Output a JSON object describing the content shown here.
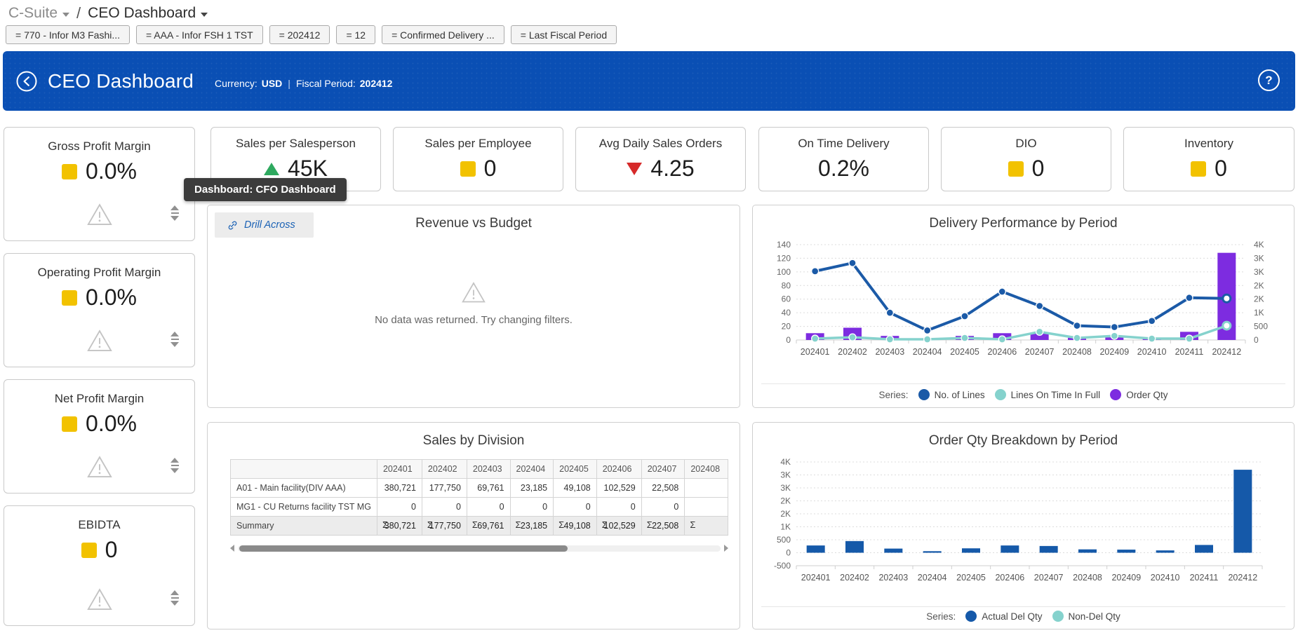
{
  "breadcrumb": {
    "section": "C-Suite",
    "divider": "/",
    "page": "CEO Dashboard"
  },
  "filters": [
    {
      "label": "= 770 - Infor M3 Fashi..."
    },
    {
      "label": "= AAA - Infor FSH 1 TST"
    },
    {
      "label": "= 202412"
    },
    {
      "label": "= 12"
    },
    {
      "label": "= Confirmed Delivery ..."
    },
    {
      "label": "= Last Fiscal Period"
    }
  ],
  "banner": {
    "title": "CEO Dashboard",
    "currency_label": "Currency:",
    "currency": "USD",
    "separator": "|",
    "fiscal_label": "Fiscal Period:",
    "fiscal": "202412",
    "help_glyph": "?"
  },
  "tooltip": {
    "text": "Dashboard: CFO Dashboard"
  },
  "left_kpis": [
    {
      "title": "Gross Profit Margin",
      "value": "0.0%",
      "indicator": "yellow-square"
    },
    {
      "title": "Operating Profit Margin",
      "value": "0.0%",
      "indicator": "yellow-square"
    },
    {
      "title": "Net Profit Margin",
      "value": "0.0%",
      "indicator": "yellow-square"
    },
    {
      "title": "EBIDTA",
      "value": "0",
      "indicator": "yellow-square"
    }
  ],
  "top_kpis": [
    {
      "title": "Sales per Salesperson",
      "value": "45K",
      "indicator": "green-up"
    },
    {
      "title": "Sales per Employee",
      "value": "0",
      "indicator": "yellow-square"
    },
    {
      "title": "Avg Daily Sales Orders",
      "value": "4.25",
      "indicator": "red-down"
    },
    {
      "title": "On Time Delivery",
      "value": "0.2%",
      "indicator": "none"
    },
    {
      "title": "DIO",
      "value": "0",
      "indicator": "yellow-square"
    },
    {
      "title": "Inventory",
      "value": "0",
      "indicator": "yellow-square"
    }
  ],
  "revenue_panel": {
    "title": "Revenue vs Budget",
    "drill_across": "Drill Across",
    "no_data_message": "No data was returned. Try changing filters."
  },
  "colors": {
    "banner_blue": "#0a4fb4",
    "kpi_yellow": "#f2c200",
    "kpi_green": "#2ea95f",
    "kpi_red": "#d62a2a",
    "series_blue": "#1b5aa7",
    "series_teal": "#85d2cd",
    "series_purple": "#7d2ce0"
  },
  "chart_data": [
    {
      "type": "combo",
      "title": "Delivery Performance by Period",
      "legend_label": "Series:",
      "categories": [
        "202401",
        "202402",
        "202403",
        "202404",
        "202405",
        "202406",
        "202407",
        "202408",
        "202409",
        "202410",
        "202411",
        "202412"
      ],
      "series": [
        {
          "name": "No. of Lines",
          "type": "line",
          "axis": "left",
          "color": "#1b5aa7",
          "values": [
            101,
            113,
            40,
            14,
            35,
            71,
            50,
            21,
            19,
            28,
            62,
            61
          ]
        },
        {
          "name": "Lines On Time In Full",
          "type": "line",
          "axis": "left",
          "color": "#85d2cd",
          "values": [
            2,
            4,
            1,
            1,
            3,
            1,
            12,
            3,
            6,
            2,
            2,
            21
          ]
        },
        {
          "name": "Order Qty",
          "type": "bar",
          "axis": "right",
          "color": "#7d2ce0",
          "values": [
            250,
            450,
            150,
            50,
            150,
            250,
            250,
            80,
            100,
            60,
            300,
            3200
          ]
        }
      ],
      "left_axis": {
        "min": 0,
        "max": 140,
        "ticks": [
          "0",
          "20",
          "40",
          "60",
          "80",
          "100",
          "120",
          "140"
        ]
      },
      "right_axis": {
        "min": 0,
        "max": 3500,
        "ticks": [
          "0",
          "500",
          "1K",
          "2K",
          "2K",
          "3K",
          "3K",
          "4K"
        ]
      },
      "grid": true,
      "legend_position": "bottom"
    },
    {
      "type": "table",
      "title": "Sales by Division",
      "columns": [
        "",
        "202401",
        "202402",
        "202403",
        "202404",
        "202405",
        "202406",
        "202407",
        "202408"
      ],
      "rows": [
        {
          "label": "A01 - Main facility(DIV AAA)",
          "values": [
            "380,721",
            "177,750",
            "69,761",
            "23,185",
            "49,108",
            "102,529",
            "22,508",
            ""
          ]
        },
        {
          "label": "MG1 - CU Returns facility TST MG",
          "values": [
            "0",
            "0",
            "0",
            "0",
            "0",
            "0",
            "0",
            ""
          ]
        }
      ],
      "summary": {
        "label": "Summary",
        "sigma": "Σ",
        "values": [
          "380,721",
          "177,750",
          "69,761",
          "23,185",
          "49,108",
          "102,529",
          "22,508",
          ""
        ]
      }
    },
    {
      "type": "bar",
      "title": "Order Qty Breakdown by Period",
      "legend_label": "Series:",
      "categories": [
        "202401",
        "202402",
        "202403",
        "202404",
        "202405",
        "202406",
        "202407",
        "202408",
        "202409",
        "202410",
        "202411",
        "202412"
      ],
      "series": [
        {
          "name": "Actual Del Qty",
          "type": "bar",
          "axis": "left",
          "color": "#1559a9",
          "values": [
            280,
            450,
            160,
            60,
            170,
            280,
            260,
            130,
            120,
            90,
            300,
            3200
          ]
        },
        {
          "name": "Non-Del Qty",
          "type": "bar",
          "axis": "left",
          "color": "#85d2cd",
          "values": [
            0,
            0,
            0,
            0,
            0,
            0,
            0,
            0,
            0,
            0,
            0,
            0
          ]
        }
      ],
      "left_axis": {
        "min": -500,
        "max": 3500,
        "ticks": [
          "-500",
          "0",
          "500",
          "1K",
          "2K",
          "2K",
          "3K",
          "3K",
          "4K"
        ]
      },
      "grid": true,
      "legend_position": "bottom"
    }
  ]
}
